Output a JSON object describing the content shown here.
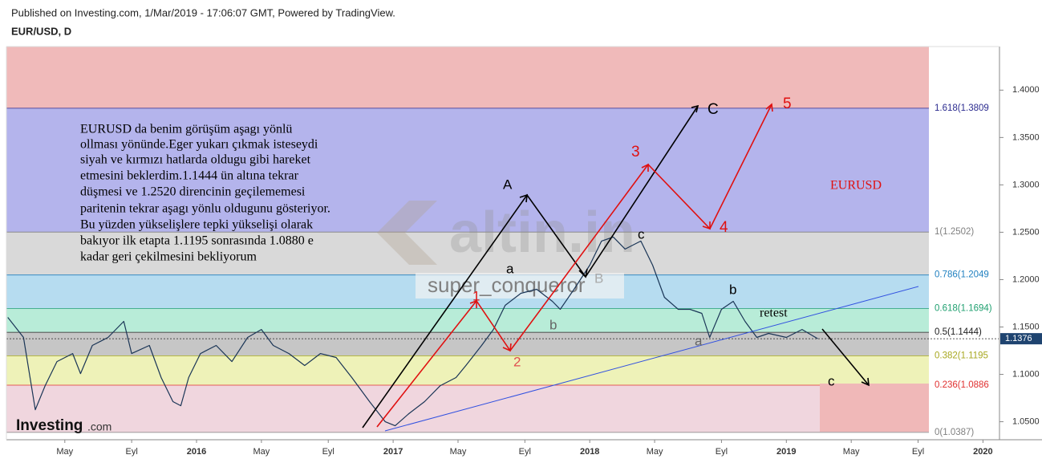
{
  "header": {
    "published": "Published on Investing.com, 1/Mar/2019 - 17:06:07 GMT, Powered by TradingView.",
    "symbol": "EUR/USD, D"
  },
  "chart_data": {
    "type": "line",
    "color": "#1a3556",
    "x": [
      2015.04,
      2015.12,
      2015.18,
      2015.23,
      2015.29,
      2015.37,
      2015.41,
      2015.47,
      2015.55,
      2015.63,
      2015.67,
      2015.76,
      2015.82,
      2015.88,
      2015.92,
      2015.96,
      2016.02,
      2016.1,
      2016.18,
      2016.26,
      2016.33,
      2016.39,
      2016.47,
      2016.55,
      2016.63,
      2016.71,
      2016.79,
      2016.88,
      2016.96,
      2017.01,
      2017.08,
      2017.16,
      2017.24,
      2017.32,
      2017.37,
      2017.45,
      2017.51,
      2017.57,
      2017.65,
      2017.73,
      2017.81,
      2017.85,
      2017.92,
      2018.0,
      2018.06,
      2018.12,
      2018.18,
      2018.26,
      2018.32,
      2018.38,
      2018.45,
      2018.51,
      2018.57,
      2018.61,
      2018.67,
      2018.73,
      2018.79,
      2018.85,
      2018.91,
      2019.0,
      2019.08,
      2019.16
    ],
    "values": [
      1.1602,
      1.139,
      1.0627,
      1.0881,
      1.1135,
      1.122,
      1.1008,
      1.1305,
      1.139,
      1.1559,
      1.122,
      1.1305,
      1.0966,
      1.0712,
      1.0669,
      1.0966,
      1.122,
      1.1305,
      1.1135,
      1.139,
      1.1474,
      1.1305,
      1.122,
      1.1093,
      1.122,
      1.1178,
      1.0966,
      1.0712,
      1.05,
      1.0457,
      1.0585,
      1.0712,
      1.0881,
      1.0966,
      1.1093,
      1.1305,
      1.1474,
      1.1729,
      1.1856,
      1.1898,
      1.1771,
      1.1686,
      1.1898,
      1.2152,
      1.2407,
      1.2449,
      1.2322,
      1.2407,
      1.2152,
      1.1813,
      1.1686,
      1.1686,
      1.1644,
      1.139,
      1.1686,
      1.1771,
      1.1559,
      1.139,
      1.1432,
      1.139,
      1.1474,
      1.1376
    ],
    "xlim": [
      2015.033,
      2020.08
    ],
    "xticks": [
      {
        "value": 2015.33,
        "label": "May"
      },
      {
        "value": 2015.67,
        "label": "Eyl"
      },
      2016,
      {
        "value": 2016.33,
        "label": "May"
      },
      {
        "value": 2016.67,
        "label": "Eyl"
      },
      2017,
      {
        "value": 2017.33,
        "label": "May"
      },
      {
        "value": 2017.67,
        "label": "Eyl"
      },
      2018,
      {
        "value": 2018.33,
        "label": "May"
      },
      {
        "value": 2018.67,
        "label": "Eyl"
      },
      2019,
      {
        "value": 2019.33,
        "label": "May"
      },
      {
        "value": 2019.67,
        "label": "Eyl"
      },
      2020
    ],
    "ylim": [
      1.031,
      1.446
    ],
    "yticks": [
      {
        "value": 1.05,
        "label": "1.0500"
      },
      {
        "value": 1.1,
        "label": "1.1000"
      },
      {
        "value": 1.15,
        "label": "1.1500"
      },
      {
        "value": 1.2,
        "label": "1.2000"
      },
      {
        "value": 1.25,
        "label": "1.2500"
      },
      {
        "value": 1.3,
        "label": "1.3000"
      },
      {
        "value": 1.35,
        "label": "1.3500"
      },
      {
        "value": 1.4,
        "label": "1.4000"
      }
    ],
    "last_price": {
      "value": 1.1376,
      "label": "1.1376"
    },
    "fib_levels": [
      {
        "value": 1.0387,
        "label": "0(1.0387)",
        "color": "#808080",
        "fill": "#f0d6de"
      },
      {
        "value": 1.0886,
        "label": "0.236(1.0886",
        "color": "#e03030",
        "fill": "#eef2b8"
      },
      {
        "value": 1.1195,
        "label": "0.382(1.1195",
        "color": "#a8a820",
        "fill": "#c6c6c6"
      },
      {
        "value": 1.1444,
        "label": "0.5(1.1444)",
        "color": "#202020",
        "fill": "#b8ecd8"
      },
      {
        "value": 1.1694,
        "label": "0.618(1.1694)",
        "color": "#20a070",
        "fill": "#b6dcf0"
      },
      {
        "value": 1.2049,
        "label": "0.786(1.2049",
        "color": "#2080c0",
        "fill": "#d9d9d9"
      },
      {
        "value": 1.2502,
        "label": "1(1.2502)",
        "color": "#808080",
        "fill": "#b4b4ec"
      },
      {
        "value": 1.3809,
        "label": "1.618(1.3809",
        "color": "#2b2b8f",
        "fill": "#f0baba"
      }
    ],
    "note_lines": [
      "EURUSD da benim görüşüm aşagı yönlü",
      "ollması yönünde.Eger yukarı çıkmak isteseydi",
      "siyah ve kırmızı hatlarda oldugu gibi hareket",
      "etmesini beklerdim.1.1444 ün altına tekrar",
      "düşmesi ve 1.2520 direncinin geçilememesi",
      "paritenin tekrar aşagı yönlu oldugunu gösteriyor.",
      "Bu yüzden yükselişlere tepki yükselişi olarak",
      "bakıyor ilk etapta 1.1195 sonrasında 1.0880 e",
      "kadar geri çekilmesini bekliyorum"
    ],
    "annotations": [
      "EURUSD",
      "A",
      "C",
      "a",
      "b",
      "c",
      "b",
      "a",
      "retest",
      "c",
      "1",
      "2",
      "3",
      "4",
      "5",
      "B"
    ],
    "watermarks": [
      "altin.in",
      "super_conqueror"
    ],
    "logo": [
      "Investing",
      ".com"
    ]
  }
}
